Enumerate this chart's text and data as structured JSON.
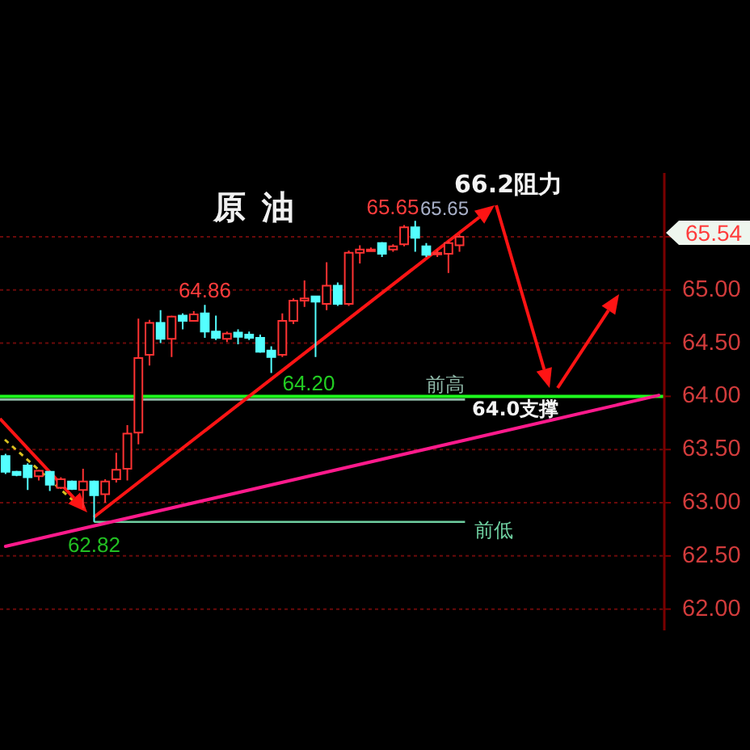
{
  "chart_data": {
    "type": "candlestick",
    "title": "原油",
    "categories": [
      null,
      null,
      null,
      null,
      null,
      null,
      null,
      null,
      null,
      null,
      null,
      null,
      null,
      null,
      null,
      null,
      null,
      null,
      null,
      null,
      null,
      null,
      null,
      null,
      null,
      null,
      null,
      null,
      null,
      null,
      null,
      null,
      null,
      null,
      null,
      null,
      null,
      null,
      null,
      null,
      null,
      null,
      null,
      null,
      null,
      null,
      null,
      null,
      null,
      null,
      null,
      null,
      null,
      null,
      null,
      null,
      null,
      null,
      null,
      null
    ],
    "ohlc": [
      [
        63.44,
        63.46,
        63.27,
        63.29
      ],
      [
        63.29,
        63.3,
        63.25,
        63.26
      ],
      [
        63.35,
        63.37,
        63.12,
        63.24
      ],
      [
        63.25,
        63.31,
        63.21,
        63.3
      ],
      [
        63.29,
        63.3,
        63.11,
        63.17
      ],
      [
        63.14,
        63.24,
        63.13,
        63.22
      ],
      [
        63.2,
        63.21,
        63.12,
        63.13
      ],
      [
        63.12,
        63.32,
        62.95,
        63.2
      ],
      [
        63.2,
        63.21,
        62.82,
        63.07
      ],
      [
        63.08,
        63.22,
        63.0,
        63.2
      ],
      [
        63.22,
        63.47,
        63.19,
        63.31
      ],
      [
        63.32,
        63.73,
        63.21,
        63.65
      ],
      [
        63.66,
        64.73,
        63.55,
        64.36
      ],
      [
        64.39,
        64.72,
        64.29,
        64.69
      ],
      [
        64.69,
        64.81,
        64.5,
        64.54
      ],
      [
        64.54,
        64.76,
        64.37,
        64.75
      ],
      [
        64.76,
        64.78,
        64.63,
        64.71
      ],
      [
        64.71,
        64.8,
        64.71,
        64.77
      ],
      [
        64.78,
        64.86,
        64.55,
        64.61
      ],
      [
        64.61,
        64.76,
        64.53,
        64.55
      ],
      [
        64.54,
        64.61,
        64.51,
        64.59
      ],
      [
        64.6,
        64.63,
        64.49,
        64.56
      ],
      [
        64.58,
        64.61,
        64.53,
        64.55
      ],
      [
        64.55,
        64.58,
        64.41,
        64.42
      ],
      [
        64.43,
        64.47,
        64.22,
        64.37
      ],
      [
        64.39,
        64.78,
        64.37,
        64.71
      ],
      [
        64.71,
        64.92,
        64.68,
        64.9
      ],
      [
        64.9,
        65.09,
        64.84,
        64.92
      ],
      [
        64.94,
        64.94,
        64.37,
        64.89
      ],
      [
        64.87,
        65.26,
        64.81,
        65.04
      ],
      [
        65.04,
        65.07,
        64.85,
        64.87
      ],
      [
        64.87,
        65.37,
        64.85,
        65.35
      ],
      [
        65.35,
        65.42,
        65.25,
        65.38
      ],
      [
        65.37,
        65.4,
        65.36,
        65.38
      ],
      [
        65.44,
        65.45,
        65.31,
        65.34
      ],
      [
        65.38,
        65.43,
        65.36,
        65.41
      ],
      [
        65.43,
        65.61,
        65.41,
        65.59
      ],
      [
        65.59,
        65.65,
        65.36,
        65.49
      ],
      [
        65.41,
        65.44,
        65.31,
        65.33
      ],
      [
        65.34,
        65.38,
        65.31,
        65.35
      ],
      [
        65.34,
        65.46,
        65.16,
        65.44
      ],
      [
        65.42,
        65.52,
        65.36,
        65.5
      ],
      null,
      null,
      null,
      null,
      null,
      null,
      null,
      null,
      null,
      null,
      null,
      null,
      null,
      null,
      null,
      null,
      null,
      null
    ],
    "series": [
      {
        "type": "line",
        "color": "#ff1a8c",
        "values": [
          62.59,
          null,
          null,
          null,
          null,
          null,
          null,
          null,
          null,
          null,
          null,
          null,
          null,
          null,
          null,
          null,
          null,
          null,
          null,
          null,
          null,
          null,
          null,
          null,
          null,
          null,
          null,
          null,
          null,
          null,
          null,
          null,
          null,
          null,
          null,
          null,
          null,
          null,
          null,
          null,
          null,
          null,
          null,
          null,
          null,
          null,
          null,
          null,
          null,
          null,
          null,
          null,
          null,
          null,
          null,
          null,
          null,
          null,
          null,
          64.01
        ]
      }
    ],
    "ylim": [
      61.8,
      66.1
    ],
    "yticks": [
      {
        "value": 62,
        "label": "62.00"
      },
      {
        "value": 62.5,
        "label": "62.50"
      },
      {
        "value": 63,
        "label": "63.00"
      },
      {
        "value": 63.5,
        "label": "63.50"
      },
      {
        "value": 64,
        "label": "64.00"
      },
      {
        "value": 64.5,
        "label": "64.50"
      },
      {
        "value": 65,
        "label": "65.00"
      },
      {
        "value": 65.5,
        "label": null
      }
    ],
    "grid": "y",
    "ref_lines": [
      {
        "axis": "y",
        "value": 64.0,
        "color": "#1eff1e"
      },
      {
        "axis": "y",
        "value": 63.97,
        "label": "前高",
        "color": "#8fb8a8"
      },
      {
        "axis": "y",
        "value": 62.82,
        "label": "前低",
        "color": "#6fcfa0"
      }
    ],
    "annotations": [
      {
        "text": "64.86",
        "y": 64.86
      },
      {
        "text": "62.82",
        "y": 62.82
      },
      "65.65",
      "65.54",
      "65.65",
      "64.20",
      "66.2阻力",
      "64.0支撑"
    ]
  }
}
